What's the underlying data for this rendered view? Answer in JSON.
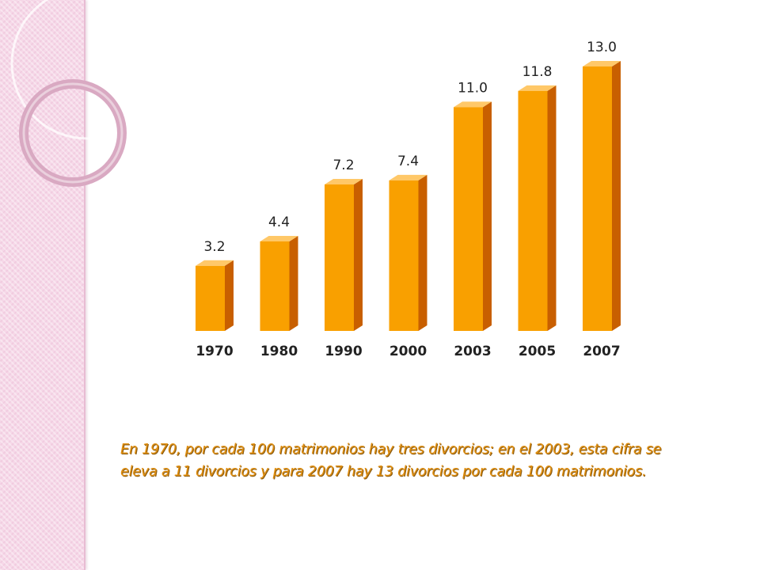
{
  "chart_data": {
    "type": "bar",
    "categories": [
      "1970",
      "1980",
      "1990",
      "2000",
      "2003",
      "2005",
      "2007"
    ],
    "values": [
      3.2,
      4.4,
      7.2,
      7.4,
      11.0,
      11.8,
      13.0
    ],
    "value_labels": [
      "3.2",
      "4.4",
      "7.2",
      "7.4",
      "11.0",
      "11.8",
      "13.0"
    ],
    "title": "",
    "xlabel": "",
    "ylabel": "",
    "ylim": [
      0,
      13.0
    ],
    "grid": false,
    "colors": {
      "front": "#f9a000",
      "side": "#c85f00",
      "top": "#ffc868"
    }
  },
  "caption": {
    "line1": "En 1970, por cada 100 matrimonios hay tres divorcios; en el 2003, esta cifra se",
    "line2": "eleva a 11 divorcios y para 2007 hay 13 divorcios por cada 100 matrimonios."
  },
  "theme": {
    "sidebar_color": "#f6d8e8",
    "caption_color": "#e08f10"
  }
}
